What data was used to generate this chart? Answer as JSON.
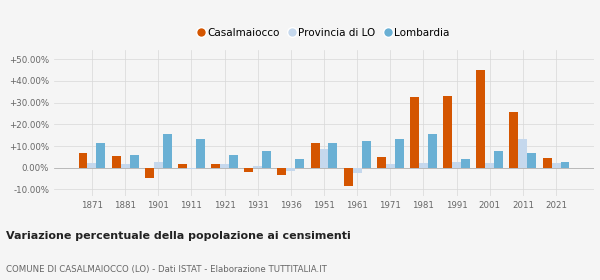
{
  "years": [
    1871,
    1881,
    1901,
    1911,
    1921,
    1931,
    1936,
    1951,
    1961,
    1971,
    1981,
    1991,
    2001,
    2011,
    2021
  ],
  "casalmaiocco": [
    7.0,
    5.5,
    -4.5,
    1.5,
    1.5,
    -1.8,
    -3.5,
    11.5,
    -8.5,
    5.0,
    32.5,
    33.0,
    45.0,
    25.5,
    4.5
  ],
  "provincia_lo": [
    2.0,
    1.5,
    2.5,
    -0.5,
    1.5,
    1.0,
    -1.5,
    8.5,
    -2.5,
    1.5,
    2.0,
    2.5,
    2.0,
    13.0,
    2.0
  ],
  "lombardia": [
    11.5,
    6.0,
    15.5,
    13.0,
    6.0,
    7.5,
    4.0,
    11.5,
    12.5,
    13.0,
    15.5,
    4.0,
    7.5,
    7.0,
    2.5
  ],
  "color_casalmaiocco": "#d45500",
  "color_provincia": "#c5d8ed",
  "color_lombardia": "#6ab0d4",
  "title": "Variazione percentuale della popolazione ai censimenti",
  "subtitle": "COMUNE DI CASALMAIOCCO (LO) - Dati ISTAT - Elaborazione TUTTITALIA.IT",
  "yticks": [
    -10,
    0,
    10,
    20,
    30,
    40,
    50
  ],
  "ytick_labels": [
    "-10.00%",
    "0.00%",
    "+10.00%",
    "+20.00%",
    "+30.00%",
    "+40.00%",
    "+50.00%"
  ],
  "ylim": [
    -13,
    54
  ],
  "bar_width": 0.27,
  "bg_color": "#f5f5f5",
  "grid_color": "#d8d8d8"
}
